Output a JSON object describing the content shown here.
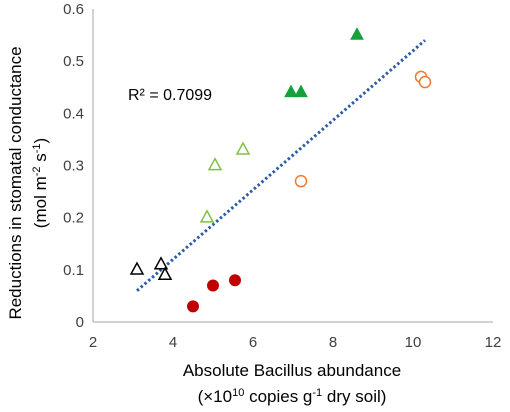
{
  "chart_data": {
    "type": "scatter",
    "title": "",
    "xlabel": "Absolute Bacillus abundance",
    "xlabel_units": [
      "(×10",
      "10",
      " copies g",
      "-1",
      " dry soil)"
    ],
    "ylabel": "Reductions in stomatal conductance",
    "ylabel_units": [
      "(mol m",
      "-2",
      " s",
      "-1",
      ")"
    ],
    "xlim": [
      2,
      12
    ],
    "ylim": [
      0,
      0.6
    ],
    "x_ticks": [
      "2",
      "4",
      "6",
      "8",
      "10",
      "12"
    ],
    "y_ticks": [
      "0",
      "0.1",
      "0.2",
      "0.3",
      "0.4",
      "0.5",
      "0.6"
    ],
    "grid": false,
    "legend": "none",
    "annotation": "R² = 0.7099",
    "trendline": {
      "style": "dotted",
      "color": "#2e5da8",
      "x": [
        3.1,
        10.3
      ],
      "y": [
        0.06,
        0.54
      ]
    },
    "series": [
      {
        "marker": "triangle-open",
        "color": "#000000",
        "x": [
          3.1,
          3.7,
          3.8
        ],
        "y": [
          0.1,
          0.11,
          0.09
        ]
      },
      {
        "marker": "circle-filled",
        "color": "#c00000",
        "x": [
          4.5,
          5.0,
          5.55
        ],
        "y": [
          0.03,
          0.07,
          0.08
        ]
      },
      {
        "marker": "triangle-open",
        "color": "#7fc241",
        "x": [
          4.85,
          5.05,
          5.75
        ],
        "y": [
          0.2,
          0.3,
          0.33
        ]
      },
      {
        "marker": "triangle-filled",
        "color": "#15a03a",
        "x": [
          6.95,
          7.2,
          8.6
        ],
        "y": [
          0.44,
          0.44,
          0.55
        ]
      },
      {
        "marker": "circle-open",
        "color": "#ed7d31",
        "x": [
          7.2,
          10.2,
          10.3
        ],
        "y": [
          0.27,
          0.47,
          0.46
        ]
      }
    ]
  }
}
